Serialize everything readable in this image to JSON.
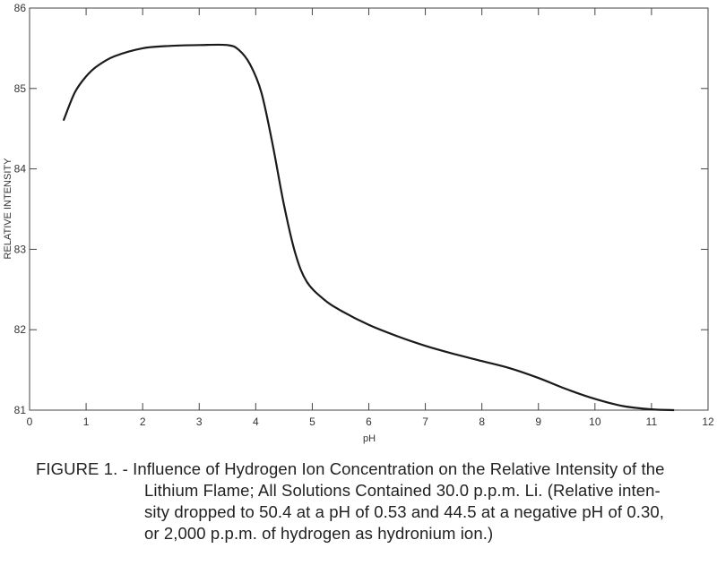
{
  "chart_data": {
    "type": "line",
    "xlabel": "pH",
    "ylabel": "RELATIVE INTENSITY",
    "xlim": [
      0,
      12
    ],
    "ylim": [
      81,
      86
    ],
    "xticks": [
      0,
      1,
      2,
      3,
      4,
      5,
      6,
      7,
      8,
      9,
      10,
      11,
      12
    ],
    "yticks": [
      81,
      82,
      83,
      84,
      85,
      86
    ],
    "grid": false,
    "series": [
      {
        "x": [
          0.6,
          0.8,
          1.0,
          1.2,
          1.5,
          2.0,
          2.5,
          3.0,
          3.5,
          3.7,
          3.9,
          4.1,
          4.3,
          4.5,
          4.7,
          4.9,
          5.2,
          5.5,
          6.0,
          6.5,
          7.0,
          7.5,
          8.0,
          8.5,
          9.0,
          9.5,
          10.0,
          10.5,
          11.0,
          11.4
        ],
        "y": [
          84.6,
          84.95,
          85.15,
          85.28,
          85.4,
          85.5,
          85.53,
          85.54,
          85.54,
          85.48,
          85.3,
          84.95,
          84.3,
          83.55,
          82.95,
          82.6,
          82.38,
          82.24,
          82.06,
          81.92,
          81.8,
          81.7,
          81.61,
          81.52,
          81.4,
          81.26,
          81.14,
          81.05,
          81.01,
          81.0
        ]
      }
    ]
  },
  "caption": {
    "lead": "FIGURE 1. - Influence of Hydrogen Ion Concentration on the Relative Intensity of the",
    "lines": [
      "Lithium Flame; All Solutions Contained 30.0 p.p.m. Li. (Relative inten-",
      "sity dropped to 50.4 at a pH of 0.53 and 44.5 at a negative pH of 0.30,",
      "or 2,000 p.p.m. of hydrogen as hydronium ion.)"
    ]
  }
}
